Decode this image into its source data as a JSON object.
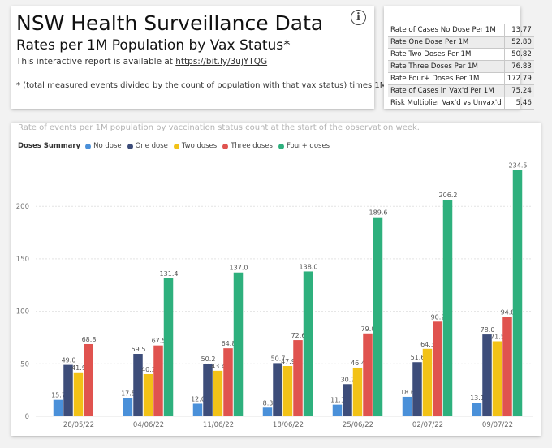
{
  "header": {
    "title": "NSW Health Surveillance Data",
    "subtitle": "Rates per 1M Population by Vax Status*",
    "available_text": "This interactive report is available at ",
    "available_link": "https://bit.ly/3ujYTQG",
    "note": "* (total measured events divided by the count of population with that vax status) times 1M",
    "info_icon": "info-icon"
  },
  "stats": [
    {
      "label": "Rate of Cases No Dose Per 1M",
      "value": "13.77"
    },
    {
      "label": "Rate One Dose Per 1M",
      "value": "52.80"
    },
    {
      "label": "Rate Two Doses Per 1M",
      "value": "50.82"
    },
    {
      "label": "Rate Three Doses Per 1M",
      "value": "76.83"
    },
    {
      "label": "Rate Four+ Doses Per 1M",
      "value": "172.79"
    },
    {
      "label": "Rate of Cases in Vax'd Per 1M",
      "value": "75.24"
    },
    {
      "label": "Risk Multiplier Vax'd vs Unvax'd",
      "value": "5.46"
    }
  ],
  "chart_data": {
    "type": "bar",
    "title": "Rate of events per 1M population by vaccination status count at the start of the observation week.",
    "legend_title": "Doses Summary",
    "categories": [
      "28/05/22",
      "04/06/22",
      "11/06/22",
      "18/06/22",
      "25/06/22",
      "02/07/22",
      "09/07/22"
    ],
    "series": [
      {
        "name": "No dose",
        "color": "#4a90d9",
        "values": [
          15.7,
          17.5,
          12.0,
          8.3,
          11.1,
          18.6,
          13.1
        ]
      },
      {
        "name": "One dose",
        "color": "#3d4d7a",
        "values": [
          49.0,
          59.5,
          50.2,
          50.7,
          30.7,
          51.6,
          78.0
        ]
      },
      {
        "name": "Two doses",
        "color": "#f2c217",
        "values": [
          41.9,
          40.2,
          43.4,
          47.9,
          46.4,
          64.3,
          71.5
        ]
      },
      {
        "name": "Three doses",
        "color": "#e0534f",
        "values": [
          68.8,
          67.5,
          64.8,
          72.6,
          79.0,
          90.2,
          94.8
        ]
      },
      {
        "name": "Four+ doses",
        "color": "#2eb07d",
        "values": [
          null,
          131.4,
          137.0,
          138.0,
          189.6,
          206.2,
          234.5
        ]
      }
    ],
    "yticks": [
      0,
      50,
      100,
      150,
      200
    ],
    "ylim": [
      0,
      245
    ],
    "grid": true,
    "legend_position": "top-left"
  }
}
